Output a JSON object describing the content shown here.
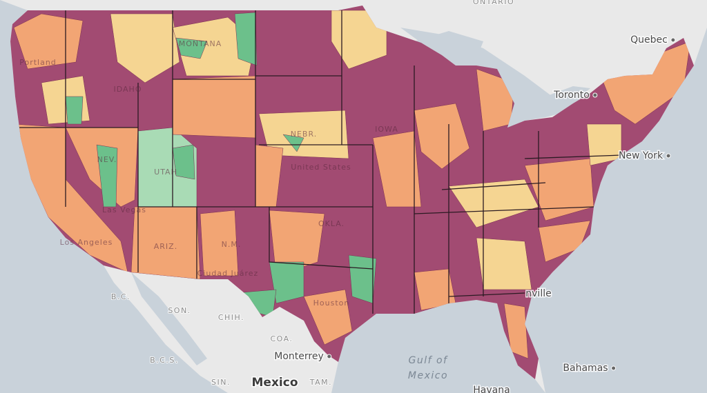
{
  "labels": [
    {
      "text": "ONTARIO",
      "kind": "region"
    },
    {
      "text": "Quebec",
      "kind": "city"
    },
    {
      "text": "Toronto",
      "kind": "city"
    },
    {
      "text": "New York",
      "kind": "city"
    },
    {
      "text": "United States",
      "kind": "state"
    },
    {
      "text": "Portland",
      "kind": "state"
    },
    {
      "text": "Las Vegas",
      "kind": "state"
    },
    {
      "text": "Los Angeles",
      "kind": "state"
    },
    {
      "text": "Ciudad Juárez",
      "kind": "state"
    },
    {
      "text": "Houston",
      "kind": "state"
    },
    {
      "text": "nville",
      "kind": "city"
    },
    {
      "text": "B.C.",
      "kind": "region"
    },
    {
      "text": "SON.",
      "kind": "region"
    },
    {
      "text": "CHIH.",
      "kind": "region"
    },
    {
      "text": "COA.",
      "kind": "region"
    },
    {
      "text": "B.C.S.",
      "kind": "region"
    },
    {
      "text": "Monterrey",
      "kind": "city"
    },
    {
      "text": "SIN.",
      "kind": "region"
    },
    {
      "text": "Mexico",
      "kind": "country"
    },
    {
      "text": "TAM.",
      "kind": "region"
    },
    {
      "text": "Gulf of",
      "kind": "water"
    },
    {
      "text": "Mexico",
      "kind": "water"
    },
    {
      "text": "Bahamas",
      "kind": "city"
    },
    {
      "text": "Havana",
      "kind": "city"
    },
    {
      "text": "MONTANA",
      "kind": "state"
    },
    {
      "text": "IDAHO",
      "kind": "state"
    },
    {
      "text": "NEV.",
      "kind": "state"
    },
    {
      "text": "UTAH",
      "kind": "state"
    },
    {
      "text": "ARIZ.",
      "kind": "state"
    },
    {
      "text": "N.M.",
      "kind": "state"
    },
    {
      "text": "NEBR.",
      "kind": "state"
    },
    {
      "text": "IOWA",
      "kind": "state"
    },
    {
      "text": "OKLA.",
      "kind": "state"
    }
  ]
}
